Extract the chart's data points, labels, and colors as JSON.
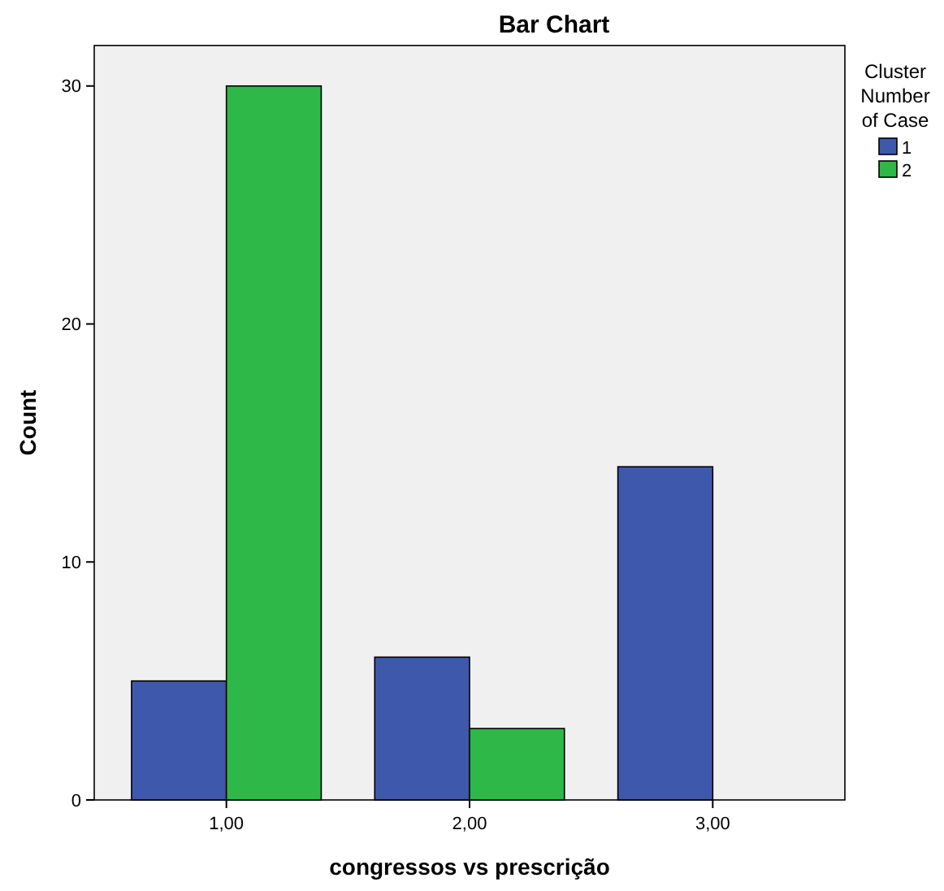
{
  "chart_data": {
    "type": "bar",
    "title": "Bar Chart",
    "xlabel": "congressos vs prescrição",
    "ylabel": "Count",
    "legend_title": "Cluster Number of Case",
    "categories": [
      "1,00",
      "2,00",
      "3,00"
    ],
    "series": [
      {
        "name": "1",
        "color": "#3e58ac",
        "values": [
          5,
          6,
          14
        ]
      },
      {
        "name": "2",
        "color": "#2eb848",
        "values": [
          30,
          3,
          0
        ]
      }
    ],
    "ylim": [
      0,
      31.7
    ],
    "yticks": [
      0,
      10,
      20,
      30
    ],
    "grid": false,
    "legend": "top right"
  }
}
